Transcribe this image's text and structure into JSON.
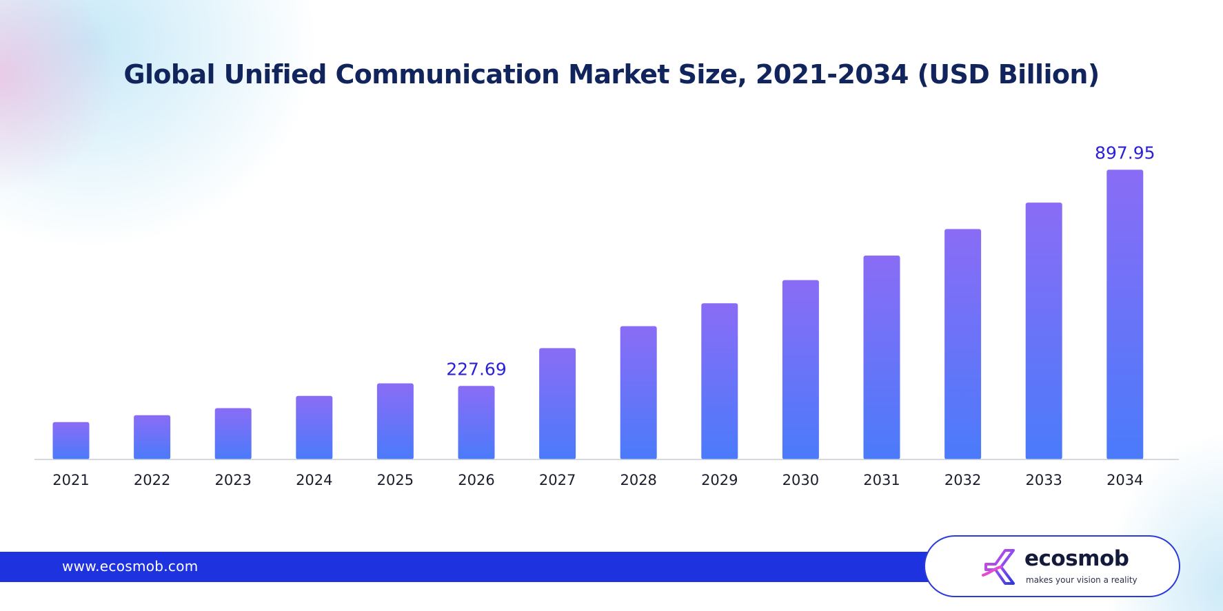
{
  "colors": {
    "title": "#11255c",
    "bar_top": "#8a6cf6",
    "bar_bottom": "#4a7bfa",
    "value_label": "#2b22d8",
    "axis_line": "#c9cbd6",
    "tick_label": "#1b1d2b",
    "footer_bar": "#1f32e0",
    "logo_border": "#2b3bd9"
  },
  "footer": {
    "url": "www.ecosmob.com"
  },
  "logo": {
    "name": "ecosmob",
    "tagline": "makes your vision a reality",
    "icon": "ecosmob-logo-icon"
  },
  "chart_data": {
    "type": "bar",
    "title": "Global Unified Communication Market Size, 2021-2034 (USD Billion)",
    "xlabel": "",
    "ylabel": "",
    "categories": [
      "2021",
      "2022",
      "2023",
      "2024",
      "2025",
      "2026",
      "2027",
      "2028",
      "2029",
      "2030",
      "2031",
      "2032",
      "2033",
      "2034"
    ],
    "values": [
      116,
      137,
      159,
      197,
      236,
      227.69,
      345,
      413,
      484,
      556,
      632,
      714,
      796,
      897.95
    ],
    "data_labels": [
      {
        "category": "2026",
        "text": "227.69"
      },
      {
        "category": "2034",
        "text": "897.95"
      }
    ],
    "ylim": [
      0,
      950
    ],
    "grid": false,
    "legend": "none"
  }
}
